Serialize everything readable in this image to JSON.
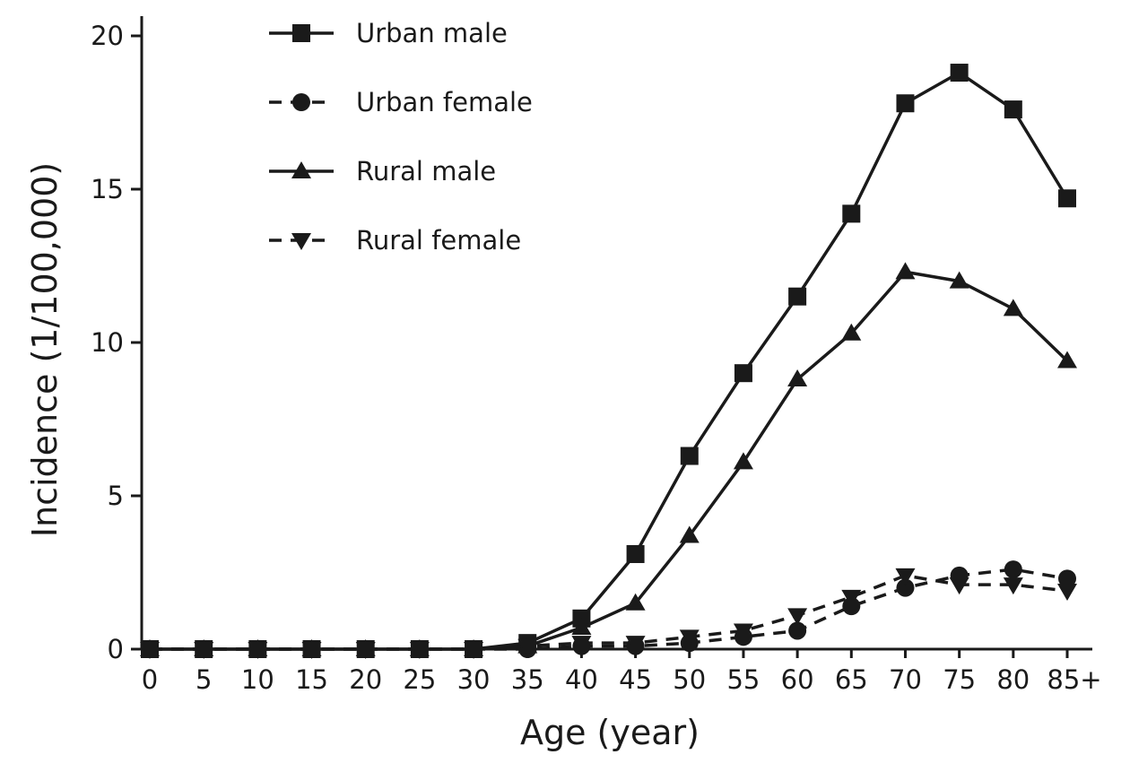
{
  "chart_data": {
    "type": "line",
    "xlabel": "Age (year)",
    "ylabel": "Incidence (1/100,000)",
    "categories": [
      "0",
      "5",
      "10",
      "15",
      "20",
      "25",
      "30",
      "35",
      "40",
      "45",
      "50",
      "55",
      "60",
      "65",
      "70",
      "75",
      "80",
      "85+"
    ],
    "ylim": [
      0,
      20
    ],
    "yticks": [
      0,
      5,
      10,
      15,
      20
    ],
    "grid": false,
    "legend": "top-left",
    "series": [
      {
        "name": "Urban male",
        "marker": "square",
        "line": "solid",
        "values": [
          0,
          0,
          0,
          0,
          0,
          0,
          0,
          0.2,
          1.0,
          3.1,
          6.3,
          9.0,
          11.5,
          14.2,
          17.8,
          18.8,
          17.6,
          14.7
        ]
      },
      {
        "name": "Urban female",
        "marker": "circle",
        "line": "dashed",
        "values": [
          0,
          0,
          0,
          0,
          0,
          0,
          0,
          0,
          0.1,
          0.1,
          0.2,
          0.4,
          0.6,
          1.4,
          2.0,
          2.4,
          2.6,
          2.3
        ]
      },
      {
        "name": "Rural male",
        "marker": "triangle-up",
        "line": "solid",
        "values": [
          0,
          0,
          0,
          0,
          0,
          0,
          0,
          0.1,
          0.7,
          1.5,
          3.7,
          6.1,
          8.8,
          10.3,
          12.3,
          12.0,
          11.1,
          9.4
        ]
      },
      {
        "name": "Rural female",
        "marker": "triangle-down",
        "line": "dashed",
        "values": [
          0,
          0,
          0,
          0,
          0,
          0,
          0,
          0.1,
          0.2,
          0.2,
          0.4,
          0.6,
          1.1,
          1.7,
          2.4,
          2.1,
          2.1,
          1.9
        ]
      }
    ]
  }
}
